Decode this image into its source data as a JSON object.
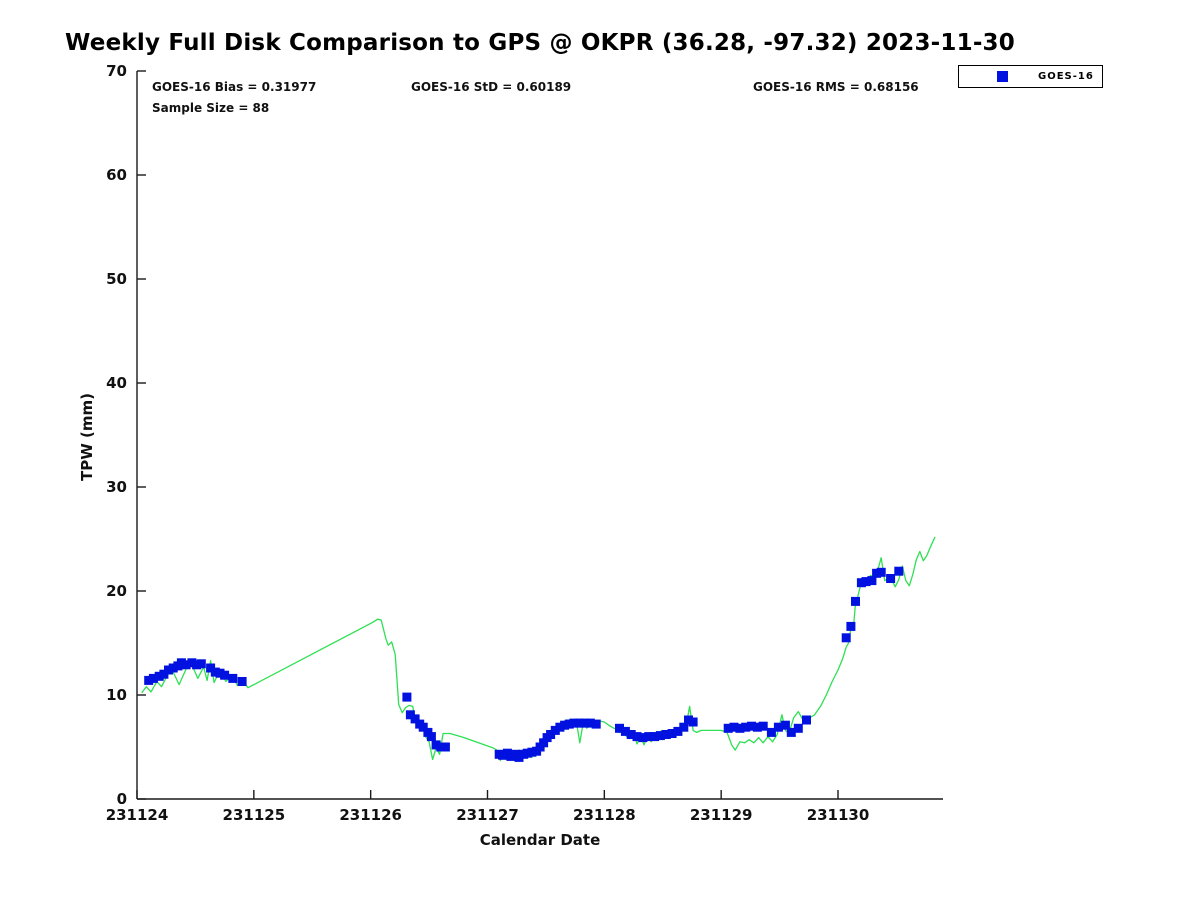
{
  "title": "Weekly Full Disk Comparison to GPS @ OKPR (36.28, -97.32) 2023-11-30",
  "stats": {
    "bias": "GOES-16 Bias = 0.31977",
    "std": "GOES-16 StD = 0.60189",
    "rms": "GOES-16 RMS = 0.68156",
    "sample_size": "Sample Size = 88"
  },
  "legend": {
    "entries": [
      {
        "label": "GOES-16",
        "marker": "square",
        "color": "#0011e0"
      }
    ]
  },
  "colors": {
    "gps_line": "#2ee052",
    "goes16_marker": "#0011e0",
    "axis": "#1a1a1a",
    "text": "#111111",
    "background": "#ffffff"
  },
  "chart_data": {
    "type": "line",
    "title": "Weekly Full Disk Comparison to GPS @ OKPR (36.28, -97.32) 2023-11-30",
    "xlabel": "Calendar Date",
    "ylabel": "TPW (mm)",
    "x_tick_labels": [
      "231124",
      "231125",
      "231126",
      "231127",
      "231128",
      "231129",
      "231130"
    ],
    "x_tick_days": [
      0,
      1,
      2,
      3,
      4,
      5,
      6
    ],
    "xlim_days": [
      0,
      6.9
    ],
    "y_ticks": [
      0,
      10,
      20,
      30,
      40,
      50,
      60,
      70
    ],
    "ylim": [
      0,
      70
    ],
    "grid": false,
    "legend_position": "top-right",
    "series": [
      {
        "name": "GPS",
        "type": "line",
        "color": "#2ee052",
        "points": [
          [
            0.04,
            10.2
          ],
          [
            0.08,
            10.8
          ],
          [
            0.12,
            10.3
          ],
          [
            0.17,
            11.3
          ],
          [
            0.21,
            10.8
          ],
          [
            0.27,
            12.1
          ],
          [
            0.31,
            12.2
          ],
          [
            0.36,
            11.0
          ],
          [
            0.42,
            12.5
          ],
          [
            0.47,
            12.9
          ],
          [
            0.52,
            11.6
          ],
          [
            0.57,
            12.7
          ],
          [
            0.6,
            11.4
          ],
          [
            0.63,
            13.3
          ],
          [
            0.66,
            11.2
          ],
          [
            0.71,
            12.4
          ],
          [
            0.76,
            11.3
          ],
          [
            0.81,
            11.9
          ],
          [
            0.86,
            10.9
          ],
          [
            0.91,
            11.3
          ],
          [
            0.95,
            10.7
          ],
          [
            2.02,
            17.0
          ],
          [
            2.06,
            17.3
          ],
          [
            2.09,
            17.2
          ],
          [
            2.13,
            15.4
          ],
          [
            2.15,
            14.8
          ],
          [
            2.18,
            15.1
          ],
          [
            2.21,
            13.9
          ],
          [
            2.24,
            9.1
          ],
          [
            2.27,
            8.3
          ],
          [
            2.3,
            8.8
          ],
          [
            2.33,
            9.0
          ],
          [
            2.36,
            8.9
          ],
          [
            2.39,
            7.2
          ],
          [
            2.42,
            6.9
          ],
          [
            2.44,
            7.3
          ],
          [
            2.47,
            6.0
          ],
          [
            2.5,
            5.5
          ],
          [
            2.53,
            3.8
          ],
          [
            2.56,
            4.9
          ],
          [
            2.59,
            4.3
          ],
          [
            2.62,
            6.3
          ],
          [
            2.68,
            6.3
          ],
          [
            2.8,
            5.9
          ],
          [
            2.95,
            5.3
          ],
          [
            3.05,
            4.9
          ],
          [
            3.08,
            4.7
          ],
          [
            3.11,
            3.7
          ],
          [
            3.14,
            4.4
          ],
          [
            3.17,
            4.0
          ],
          [
            3.2,
            4.5
          ],
          [
            3.24,
            3.8
          ],
          [
            3.27,
            4.7
          ],
          [
            3.31,
            4.2
          ],
          [
            3.35,
            4.4
          ],
          [
            3.38,
            4.0
          ],
          [
            3.41,
            4.6
          ],
          [
            3.44,
            5.0
          ],
          [
            3.47,
            5.7
          ],
          [
            3.52,
            6.2
          ],
          [
            3.55,
            6.3
          ],
          [
            3.58,
            6.8
          ],
          [
            3.61,
            6.9
          ],
          [
            3.64,
            7.4
          ],
          [
            3.68,
            7.6
          ],
          [
            3.72,
            7.6
          ],
          [
            3.76,
            7.5
          ],
          [
            3.79,
            5.4
          ],
          [
            3.82,
            7.4
          ],
          [
            3.85,
            6.8
          ],
          [
            3.88,
            7.3
          ],
          [
            3.92,
            7.4
          ],
          [
            3.96,
            7.5
          ],
          [
            4.0,
            7.4
          ],
          [
            4.05,
            7.0
          ],
          [
            4.1,
            6.7
          ],
          [
            4.13,
            6.4
          ],
          [
            4.16,
            6.6
          ],
          [
            4.19,
            6.0
          ],
          [
            4.22,
            5.8
          ],
          [
            4.25,
            6.4
          ],
          [
            4.28,
            5.3
          ],
          [
            4.31,
            6.0
          ],
          [
            4.34,
            5.2
          ],
          [
            4.37,
            6.3
          ],
          [
            4.4,
            5.5
          ],
          [
            4.43,
            6.4
          ],
          [
            4.46,
            6.2
          ],
          [
            4.49,
            6.6
          ],
          [
            4.52,
            5.9
          ],
          [
            4.55,
            6.4
          ],
          [
            4.58,
            6.2
          ],
          [
            4.62,
            6.6
          ],
          [
            4.66,
            6.6
          ],
          [
            4.7,
            7.0
          ],
          [
            4.73,
            8.9
          ],
          [
            4.76,
            6.6
          ],
          [
            4.79,
            6.4
          ],
          [
            4.83,
            6.6
          ],
          [
            4.9,
            6.6
          ],
          [
            5.0,
            6.6
          ],
          [
            5.05,
            6.4
          ],
          [
            5.09,
            5.2
          ],
          [
            5.12,
            4.7
          ],
          [
            5.16,
            5.5
          ],
          [
            5.2,
            5.4
          ],
          [
            5.24,
            5.7
          ],
          [
            5.28,
            5.4
          ],
          [
            5.32,
            5.9
          ],
          [
            5.36,
            5.4
          ],
          [
            5.4,
            6.0
          ],
          [
            5.44,
            5.5
          ],
          [
            5.48,
            6.2
          ],
          [
            5.52,
            8.1
          ],
          [
            5.55,
            6.6
          ],
          [
            5.58,
            6.3
          ],
          [
            5.62,
            7.8
          ],
          [
            5.66,
            8.4
          ],
          [
            5.7,
            7.6
          ],
          [
            5.74,
            7.7
          ],
          [
            5.8,
            8.1
          ],
          [
            5.85,
            8.9
          ],
          [
            5.9,
            10.0
          ],
          [
            5.95,
            11.3
          ],
          [
            6.0,
            12.4
          ],
          [
            6.04,
            13.5
          ],
          [
            6.07,
            14.6
          ],
          [
            6.09,
            15.0
          ],
          [
            6.11,
            16.4
          ],
          [
            6.13,
            16.2
          ],
          [
            6.15,
            18.8
          ],
          [
            6.17,
            19.5
          ],
          [
            6.19,
            20.4
          ],
          [
            6.22,
            20.8
          ],
          [
            6.25,
            21.0
          ],
          [
            6.28,
            21.5
          ],
          [
            6.31,
            21.3
          ],
          [
            6.34,
            22.0
          ],
          [
            6.37,
            23.2
          ],
          [
            6.4,
            21.0
          ],
          [
            6.43,
            21.2
          ],
          [
            6.46,
            21.1
          ],
          [
            6.49,
            20.4
          ],
          [
            6.52,
            21.1
          ],
          [
            6.55,
            22.4
          ],
          [
            6.58,
            21.0
          ],
          [
            6.61,
            20.5
          ],
          [
            6.64,
            21.6
          ],
          [
            6.67,
            23.0
          ],
          [
            6.7,
            23.8
          ],
          [
            6.73,
            22.9
          ],
          [
            6.76,
            23.4
          ],
          [
            6.79,
            24.2
          ],
          [
            6.83,
            25.2
          ]
        ]
      },
      {
        "name": "GOES-16",
        "type": "scatter",
        "marker": "square",
        "color": "#0011e0",
        "points": [
          [
            0.1,
            11.4
          ],
          [
            0.14,
            11.6
          ],
          [
            0.19,
            11.8
          ],
          [
            0.23,
            12.0
          ],
          [
            0.27,
            12.4
          ],
          [
            0.31,
            12.6
          ],
          [
            0.35,
            12.8
          ],
          [
            0.38,
            13.1
          ],
          [
            0.42,
            12.9
          ],
          [
            0.47,
            13.1
          ],
          [
            0.51,
            12.9
          ],
          [
            0.55,
            13.0
          ],
          [
            0.63,
            12.6
          ],
          [
            0.67,
            12.2
          ],
          [
            0.71,
            12.1
          ],
          [
            0.75,
            11.9
          ],
          [
            0.82,
            11.6
          ],
          [
            0.9,
            11.3
          ],
          [
            2.31,
            9.8
          ],
          [
            2.34,
            8.1
          ],
          [
            2.38,
            7.7
          ],
          [
            2.42,
            7.2
          ],
          [
            2.45,
            6.9
          ],
          [
            2.49,
            6.4
          ],
          [
            2.52,
            6.0
          ],
          [
            2.56,
            5.2
          ],
          [
            2.6,
            5.0
          ],
          [
            2.64,
            5.0
          ],
          [
            3.1,
            4.3
          ],
          [
            3.13,
            4.2
          ],
          [
            3.17,
            4.4
          ],
          [
            3.2,
            4.1
          ],
          [
            3.24,
            4.3
          ],
          [
            3.27,
            4.0
          ],
          [
            3.31,
            4.3
          ],
          [
            3.34,
            4.4
          ],
          [
            3.38,
            4.5
          ],
          [
            3.42,
            4.6
          ],
          [
            3.45,
            5.0
          ],
          [
            3.48,
            5.4
          ],
          [
            3.51,
            5.9
          ],
          [
            3.54,
            6.2
          ],
          [
            3.58,
            6.6
          ],
          [
            3.62,
            6.9
          ],
          [
            3.66,
            7.1
          ],
          [
            3.7,
            7.2
          ],
          [
            3.74,
            7.3
          ],
          [
            3.79,
            7.3
          ],
          [
            3.83,
            7.3
          ],
          [
            3.88,
            7.3
          ],
          [
            3.93,
            7.2
          ],
          [
            4.13,
            6.8
          ],
          [
            4.18,
            6.5
          ],
          [
            4.23,
            6.2
          ],
          [
            4.28,
            6.0
          ],
          [
            4.33,
            5.9
          ],
          [
            4.38,
            6.0
          ],
          [
            4.43,
            6.0
          ],
          [
            4.48,
            6.1
          ],
          [
            4.53,
            6.2
          ],
          [
            4.58,
            6.3
          ],
          [
            4.63,
            6.5
          ],
          [
            4.68,
            6.9
          ],
          [
            4.72,
            7.6
          ],
          [
            4.76,
            7.4
          ],
          [
            5.06,
            6.8
          ],
          [
            5.11,
            6.9
          ],
          [
            5.16,
            6.8
          ],
          [
            5.21,
            6.9
          ],
          [
            5.26,
            7.0
          ],
          [
            5.31,
            6.9
          ],
          [
            5.36,
            7.0
          ],
          [
            5.43,
            6.4
          ],
          [
            5.49,
            6.9
          ],
          [
            5.55,
            7.1
          ],
          [
            5.6,
            6.4
          ],
          [
            5.66,
            6.8
          ],
          [
            5.73,
            7.6
          ],
          [
            6.07,
            15.5
          ],
          [
            6.11,
            16.6
          ],
          [
            6.15,
            19.0
          ],
          [
            6.2,
            20.8
          ],
          [
            6.24,
            20.9
          ],
          [
            6.29,
            21.0
          ],
          [
            6.33,
            21.7
          ],
          [
            6.37,
            21.8
          ],
          [
            6.45,
            21.2
          ],
          [
            6.52,
            21.9
          ]
        ]
      }
    ]
  }
}
